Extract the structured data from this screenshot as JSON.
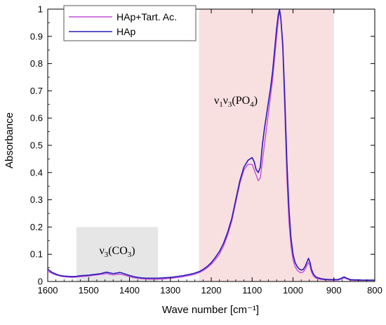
{
  "chart_data": {
    "type": "line",
    "xlabel": "Wave number [cm⁻¹]",
    "ylabel": "Absorbance",
    "xlim": [
      1600,
      800
    ],
    "ylim": [
      0,
      1
    ],
    "x_reversed": true,
    "xticks": [
      1600,
      1500,
      1400,
      1300,
      1200,
      1100,
      1000,
      900,
      800
    ],
    "yticks": [
      0,
      0.1,
      0.2,
      0.3,
      0.4,
      0.5,
      0.6,
      0.7,
      0.8,
      0.9,
      1
    ],
    "ytick_labels": [
      "0",
      "0.1",
      "0.2",
      "0.3",
      "0.4",
      "0.5",
      "0.6",
      "0.7",
      "0.8",
      "0.9",
      "1"
    ],
    "legend_position": "top-left",
    "regions": [
      {
        "name": "carbonate band",
        "label": "ν3(CO3)",
        "x_range": [
          1530,
          1330
        ],
        "y_top": 0.2,
        "color": "#e6e6e6"
      },
      {
        "name": "phosphate band",
        "label": "ν1ν3(PO4)",
        "x_range": [
          1230,
          900
        ],
        "y_top": 1.0,
        "color": "#f8dfe0"
      }
    ],
    "series": [
      {
        "name": "HAp+Tart. Ac.",
        "color": "#c44fd6",
        "x": [
          1600,
          1590,
          1580,
          1570,
          1560,
          1550,
          1540,
          1530,
          1520,
          1510,
          1500,
          1490,
          1480,
          1470,
          1460,
          1455,
          1450,
          1440,
          1430,
          1425,
          1420,
          1410,
          1400,
          1390,
          1380,
          1370,
          1360,
          1350,
          1340,
          1330,
          1320,
          1310,
          1300,
          1290,
          1280,
          1270,
          1260,
          1250,
          1240,
          1230,
          1220,
          1210,
          1200,
          1190,
          1180,
          1170,
          1160,
          1150,
          1140,
          1130,
          1120,
          1110,
          1100,
          1095,
          1090,
          1085,
          1080,
          1075,
          1070,
          1065,
          1060,
          1055,
          1050,
          1045,
          1040,
          1036,
          1033,
          1030,
          1025,
          1020,
          1015,
          1010,
          1005,
          1000,
          995,
          990,
          985,
          980,
          975,
          970,
          965,
          962,
          958,
          955,
          950,
          945,
          940,
          930,
          920,
          910,
          900,
          890,
          880,
          875,
          870,
          860,
          850,
          840,
          830,
          820,
          810,
          800
        ],
        "y": [
          0.038,
          0.03,
          0.024,
          0.02,
          0.017,
          0.016,
          0.015,
          0.016,
          0.018,
          0.019,
          0.02,
          0.022,
          0.024,
          0.026,
          0.028,
          0.029,
          0.027,
          0.024,
          0.026,
          0.027,
          0.026,
          0.022,
          0.018,
          0.014,
          0.012,
          0.01,
          0.009,
          0.008,
          0.008,
          0.008,
          0.009,
          0.01,
          0.011,
          0.013,
          0.015,
          0.017,
          0.02,
          0.023,
          0.027,
          0.032,
          0.04,
          0.05,
          0.063,
          0.08,
          0.1,
          0.13,
          0.17,
          0.22,
          0.29,
          0.36,
          0.41,
          0.43,
          0.43,
          0.41,
          0.39,
          0.37,
          0.38,
          0.44,
          0.5,
          0.56,
          0.62,
          0.68,
          0.74,
          0.82,
          0.9,
          0.96,
          0.99,
          0.97,
          0.85,
          0.62,
          0.38,
          0.22,
          0.13,
          0.08,
          0.055,
          0.042,
          0.035,
          0.032,
          0.035,
          0.045,
          0.062,
          0.07,
          0.055,
          0.035,
          0.02,
          0.013,
          0.01,
          0.007,
          0.006,
          0.005,
          0.005,
          0.005,
          0.01,
          0.013,
          0.01,
          0.005,
          0.004,
          0.004,
          0.004,
          0.004,
          0.004,
          0.004
        ]
      },
      {
        "name": "HAp",
        "color": "#2b1bb8",
        "x": [
          1600,
          1590,
          1580,
          1570,
          1560,
          1550,
          1540,
          1530,
          1520,
          1510,
          1500,
          1490,
          1480,
          1470,
          1460,
          1455,
          1450,
          1440,
          1430,
          1425,
          1420,
          1410,
          1400,
          1390,
          1380,
          1370,
          1360,
          1350,
          1340,
          1330,
          1320,
          1310,
          1300,
          1290,
          1280,
          1270,
          1260,
          1250,
          1240,
          1230,
          1220,
          1210,
          1200,
          1190,
          1180,
          1170,
          1160,
          1150,
          1140,
          1130,
          1120,
          1110,
          1100,
          1095,
          1090,
          1085,
          1080,
          1075,
          1070,
          1065,
          1060,
          1055,
          1050,
          1045,
          1040,
          1036,
          1033,
          1030,
          1025,
          1020,
          1015,
          1010,
          1005,
          1000,
          995,
          990,
          985,
          980,
          975,
          970,
          965,
          962,
          958,
          955,
          950,
          945,
          940,
          930,
          920,
          910,
          900,
          890,
          880,
          875,
          870,
          860,
          850,
          840,
          830,
          820,
          810,
          800
        ],
        "y": [
          0.045,
          0.034,
          0.027,
          0.022,
          0.02,
          0.019,
          0.018,
          0.019,
          0.021,
          0.022,
          0.023,
          0.025,
          0.027,
          0.029,
          0.033,
          0.034,
          0.032,
          0.029,
          0.031,
          0.033,
          0.032,
          0.027,
          0.022,
          0.018,
          0.015,
          0.013,
          0.012,
          0.012,
          0.012,
          0.012,
          0.013,
          0.014,
          0.015,
          0.017,
          0.019,
          0.021,
          0.024,
          0.027,
          0.031,
          0.036,
          0.044,
          0.055,
          0.069,
          0.088,
          0.11,
          0.14,
          0.18,
          0.23,
          0.3,
          0.37,
          0.42,
          0.445,
          0.455,
          0.44,
          0.41,
          0.4,
          0.42,
          0.5,
          0.56,
          0.61,
          0.66,
          0.71,
          0.77,
          0.85,
          0.93,
          0.98,
          1.0,
          0.97,
          0.87,
          0.67,
          0.44,
          0.27,
          0.16,
          0.1,
          0.07,
          0.055,
          0.046,
          0.042,
          0.044,
          0.056,
          0.075,
          0.085,
          0.068,
          0.045,
          0.027,
          0.018,
          0.014,
          0.01,
          0.008,
          0.007,
          0.007,
          0.007,
          0.013,
          0.017,
          0.013,
          0.007,
          0.006,
          0.006,
          0.005,
          0.005,
          0.005,
          0.005
        ]
      }
    ]
  },
  "labels": {
    "xlabel": "Wave number [cm⁻¹]",
    "ylabel": "Absorbance",
    "legend_1": "HAp+Tart. Ac.",
    "legend_2": "HAp"
  }
}
